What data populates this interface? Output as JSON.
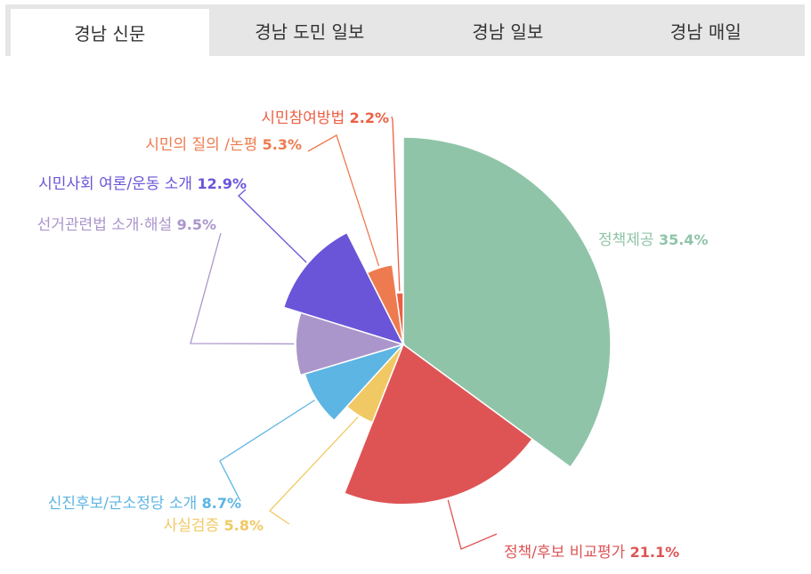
{
  "tabs": [
    {
      "label": "경남 신문",
      "active": true
    },
    {
      "label": "경남 도민 일보",
      "active": false
    },
    {
      "label": "경남 일보",
      "active": false
    },
    {
      "label": "경남 매일",
      "active": false
    }
  ],
  "chart_data": {
    "type": "pie",
    "variant": "variable-radius (rose) pie",
    "slices": [
      {
        "label": "정책제공",
        "value": 35.4,
        "value_label": "35.4%",
        "color": "#8fc4a8"
      },
      {
        "label": "정책/후보 비교평가",
        "value": 21.1,
        "value_label": "21.1%",
        "color": "#de5455"
      },
      {
        "label": "사실검증",
        "value": 5.8,
        "value_label": "5.8%",
        "color": "#f1c964"
      },
      {
        "label": "신진후보/군소정당 소개",
        "value": 8.7,
        "value_label": "8.7%",
        "color": "#5db5e3"
      },
      {
        "label": "선거관련법 소개·해설",
        "value": 9.5,
        "value_label": "9.5%",
        "color": "#ab96cb"
      },
      {
        "label": "시민사회 여론/운동 소개",
        "value": 12.9,
        "value_label": "12.9%",
        "color": "#6a55d8"
      },
      {
        "label": "시민의 질의 /논평",
        "value": 5.3,
        "value_label": "5.3%",
        "color": "#ed7b4f"
      },
      {
        "label": "시민참여방법",
        "value": 2.2,
        "value_label": "2.2%",
        "color": "#ed5f43"
      }
    ]
  }
}
